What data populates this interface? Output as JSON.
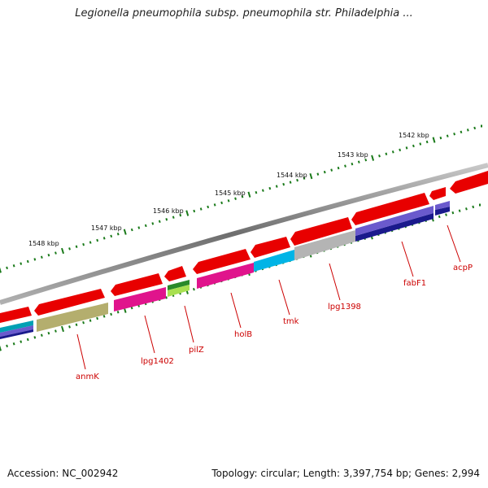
{
  "header": {
    "title": "Legionella pneumophila subsp. pneumophila str. Philadelphia ..."
  },
  "footer": {
    "accession": "Accession: NC_002942",
    "summary": "Topology: circular; Length: 3,397,754 bp; Genes: 2,994"
  },
  "scale": {
    "tick_labels": [
      "1542 kbp",
      "1543 kbp",
      "1544 kbp",
      "1545 kbp",
      "1546 kbp",
      "1547 kbp",
      "1548 kbp"
    ]
  },
  "genes": {
    "labels": [
      "acpP",
      "fabF1",
      "lpg1398",
      "tmk",
      "holB",
      "pilZ",
      "lpg1402",
      "anmK"
    ]
  },
  "colors": {
    "backbone": "#7a7a7a",
    "gene_arrow": "#e80000",
    "tick_mark": "#1a7a1a",
    "label_text": "#cc0000",
    "cog_navy": "#1a1a8c",
    "cog_purple": "#6a5acd",
    "cog_cyan": "#00b4e6",
    "cog_grey": "#b4b4b4",
    "cog_magenta": "#e0148c",
    "cog_green": "#2a8a2a",
    "cog_lime": "#a8e050",
    "cog_olive": "#b4ae6e",
    "cog_teal": "#00a0b4"
  }
}
